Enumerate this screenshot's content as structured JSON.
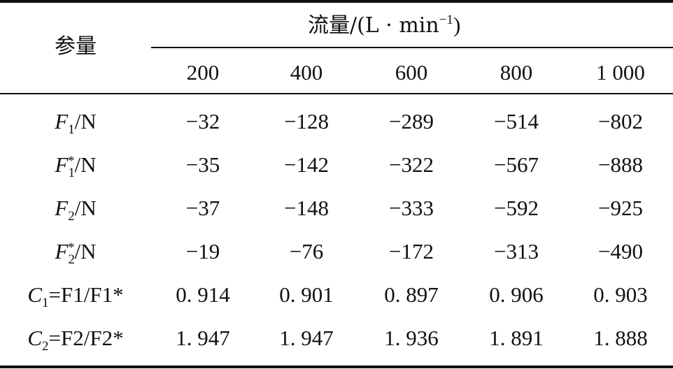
{
  "table": {
    "param_header": "参量",
    "flow_header": "流量/(L · min",
    "flow_unit_exp": "−1",
    "flow_close": ")",
    "flow_values": [
      "200",
      "400",
      "600",
      "800",
      "1 000"
    ],
    "rows": [
      {
        "label_parts": [
          "F",
          "1",
          "",
          "/N"
        ],
        "values": [
          "−32",
          "−128",
          "−289",
          "−514",
          "−802"
        ]
      },
      {
        "label_parts": [
          "F",
          "1",
          "*",
          "/N"
        ],
        "values": [
          "−35",
          "−142",
          "−322",
          "−567",
          "−888"
        ]
      },
      {
        "label_parts": [
          "F",
          "2",
          "",
          "/N"
        ],
        "values": [
          "−37",
          "−148",
          "−333",
          "−592",
          "−925"
        ]
      },
      {
        "label_parts": [
          "F",
          "2",
          "*",
          "/N"
        ],
        "values": [
          "−19",
          "−76",
          "−172",
          "−313",
          "−490"
        ]
      },
      {
        "label_parts": [
          "C",
          "1",
          "=F1/F1*",
          ""
        ],
        "values": [
          "0. 914",
          "0. 901",
          "0. 897",
          "0. 906",
          "0. 903"
        ]
      },
      {
        "label_parts": [
          "C",
          "2",
          "=F2/F2*",
          ""
        ],
        "values": [
          "1. 947",
          "1. 947",
          "1. 936",
          "1. 891",
          "1. 888"
        ]
      }
    ]
  }
}
